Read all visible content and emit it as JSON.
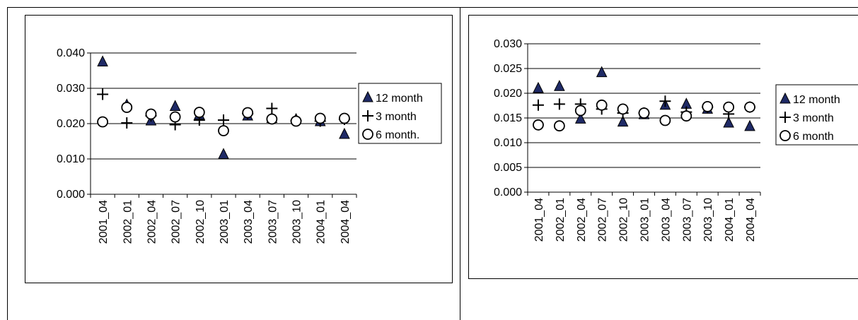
{
  "chart_data": [
    {
      "type": "scatter",
      "title": "",
      "xlabel": "",
      "ylabel": "",
      "ylim": [
        0,
        0.04
      ],
      "yticks": [
        "0.000",
        "0.010",
        "0.020",
        "0.030",
        "0.040"
      ],
      "ytick_values": [
        0,
        0.01,
        0.02,
        0.03,
        0.04
      ],
      "categories": [
        "2001_04",
        "2002_01",
        "2002_04",
        "2002_07",
        "2002_10",
        "2003_01",
        "2003_04",
        "2003_07",
        "2003_10",
        "2004_01",
        "2004_04"
      ],
      "grid": true,
      "legend": "right",
      "series": [
        {
          "name": "12 month",
          "marker": "triangle",
          "color": "#1f2a66",
          "values": [
            0.0375,
            0.0253,
            0.0208,
            0.0249,
            0.0225,
            0.0113,
            0.0222,
            0.0215,
            0.0212,
            0.0206,
            0.017
          ]
        },
        {
          "name": "3 month",
          "marker": "plus",
          "color": "#000000",
          "values": [
            0.0283,
            0.0202,
            0.0222,
            0.0197,
            0.021,
            0.021,
            0.0228,
            0.0243,
            0.0208,
            0.0207,
            0.0212
          ]
        },
        {
          "name": "6 month.",
          "marker": "circle",
          "color": "#000000",
          "values": [
            0.0205,
            0.0246,
            0.0227,
            0.0219,
            0.0232,
            0.018,
            0.0231,
            0.0213,
            0.0207,
            0.0215,
            0.0215
          ]
        }
      ]
    },
    {
      "type": "scatter",
      "title": "",
      "xlabel": "",
      "ylabel": "",
      "ylim": [
        0,
        0.03
      ],
      "yticks": [
        "0.000",
        "0.005",
        "0.010",
        "0.015",
        "0.020",
        "0.025",
        "0.030"
      ],
      "ytick_values": [
        0,
        0.005,
        0.01,
        0.015,
        0.02,
        0.025,
        0.03
      ],
      "categories": [
        "2001_04",
        "2002_01",
        "2002_04",
        "2002_07",
        "2002_10",
        "2003_01",
        "2003_04",
        "2003_07",
        "2003_10",
        "2004_01",
        "2004_04"
      ],
      "grid": true,
      "legend": "right",
      "series": [
        {
          "name": "12 month",
          "marker": "triangle",
          "color": "#1f2a66",
          "values": [
            0.021,
            0.0214,
            0.0148,
            0.0242,
            0.0142,
            0.0157,
            0.0176,
            0.0178,
            0.0168,
            0.014,
            0.0133
          ]
        },
        {
          "name": "3 month",
          "marker": "plus",
          "color": "#000000",
          "values": [
            0.0176,
            0.0178,
            0.0178,
            0.0168,
            0.016,
            0.016,
            0.0184,
            0.0162,
            0.0172,
            0.0158,
            0.0172
          ]
        },
        {
          "name": "6 month",
          "marker": "circle",
          "color": "#000000",
          "values": [
            0.0136,
            0.0134,
            0.0165,
            0.0176,
            0.0168,
            0.016,
            0.0145,
            0.0154,
            0.0173,
            0.0172,
            0.0172
          ]
        }
      ]
    }
  ]
}
